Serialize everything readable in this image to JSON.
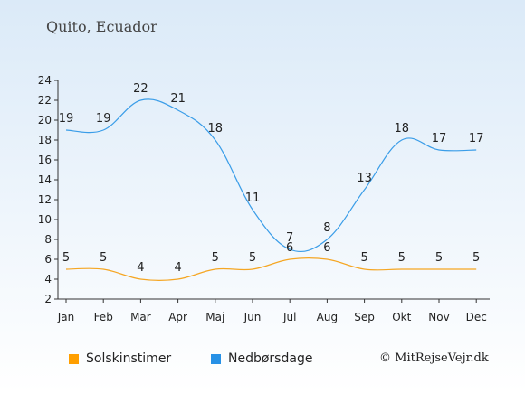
{
  "header": {
    "title": "Quito, Ecuador"
  },
  "legend": {
    "sun_label": "Solskinstimer",
    "rain_label": "Nedbørsdage"
  },
  "footer": {
    "copyright": "© MitRejseVejr.dk"
  },
  "colors": {
    "sun": "#ff9f00",
    "rain": "#2791e6",
    "sun_line": "#f5a623",
    "rain_line": "#3a9de8"
  },
  "chart_data": {
    "type": "line",
    "categories": [
      "Jan",
      "Feb",
      "Mar",
      "Apr",
      "Maj",
      "Jun",
      "Jul",
      "Aug",
      "Sep",
      "Okt",
      "Nov",
      "Dec"
    ],
    "ylim": [
      2,
      24
    ],
    "yticks": [
      2,
      4,
      6,
      8,
      10,
      12,
      14,
      16,
      18,
      20,
      22,
      24
    ],
    "grid": false,
    "series": [
      {
        "name": "Solskinstimer",
        "values": [
          5,
          5,
          4,
          4,
          5,
          5,
          6,
          6,
          5,
          5,
          5,
          5
        ]
      },
      {
        "name": "Nedbørsdage",
        "values": [
          19,
          19,
          22,
          21,
          18,
          11,
          7,
          8,
          13,
          18,
          17,
          17
        ]
      }
    ]
  }
}
